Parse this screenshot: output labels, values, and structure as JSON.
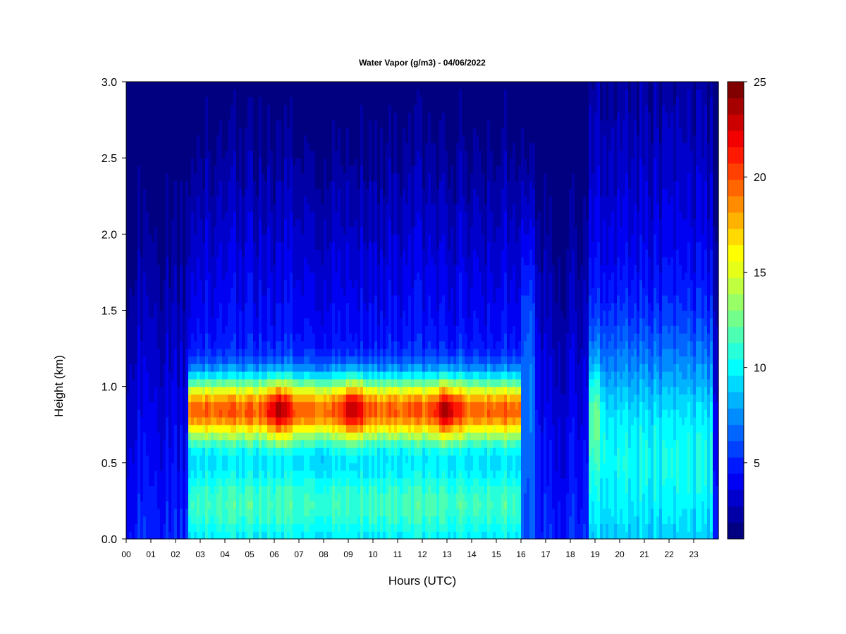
{
  "chart_data": {
    "type": "heatmap",
    "title": "Water Vapor (g/m3) - 04/06/2022",
    "xlabel": "Hours (UTC)",
    "ylabel": "Height (km)",
    "x_ticks": [
      "00",
      "01",
      "02",
      "03",
      "04",
      "05",
      "06",
      "07",
      "08",
      "09",
      "10",
      "11",
      "12",
      "13",
      "14",
      "15",
      "16",
      "17",
      "18",
      "19",
      "20",
      "21",
      "22",
      "23"
    ],
    "xlim": [
      0,
      24
    ],
    "y_ticks": [
      "0.0",
      "0.5",
      "1.0",
      "1.5",
      "2.0",
      "2.5",
      "3.0"
    ],
    "ylim": [
      0,
      3
    ],
    "colorbar": {
      "range": [
        1,
        25
      ],
      "ticks": [
        "5",
        "10",
        "15",
        "20",
        "25"
      ],
      "tick_values": [
        5,
        10,
        15,
        20,
        25
      ],
      "colors": [
        "#000080",
        "#0000a6",
        "#0000cc",
        "#0000f2",
        "#0019ff",
        "#0040ff",
        "#0066ff",
        "#008cff",
        "#00b3ff",
        "#00d9ff",
        "#00ffff",
        "#26ffd9",
        "#4dffb3",
        "#73ff8c",
        "#99ff66",
        "#bfff40",
        "#e6ff19",
        "#ffff00",
        "#ffd900",
        "#ffb300",
        "#ff8c00",
        "#ff6600",
        "#ff4000",
        "#ff1900",
        "#f20000",
        "#cc0000",
        "#a60000",
        "#800000"
      ]
    },
    "moist_layer": {
      "height_range_km": [
        0.5,
        1.3
      ],
      "peak_height_km": 0.85,
      "hour_range": [
        2.5,
        16.0
      ],
      "peak_value": 23
    },
    "peak_times": [
      6.2,
      9.2,
      13.0
    ],
    "secondary_plume": {
      "hour_range": [
        18.8,
        23.8
      ],
      "peak_height_km": 0.85,
      "peak_value": 12
    }
  }
}
